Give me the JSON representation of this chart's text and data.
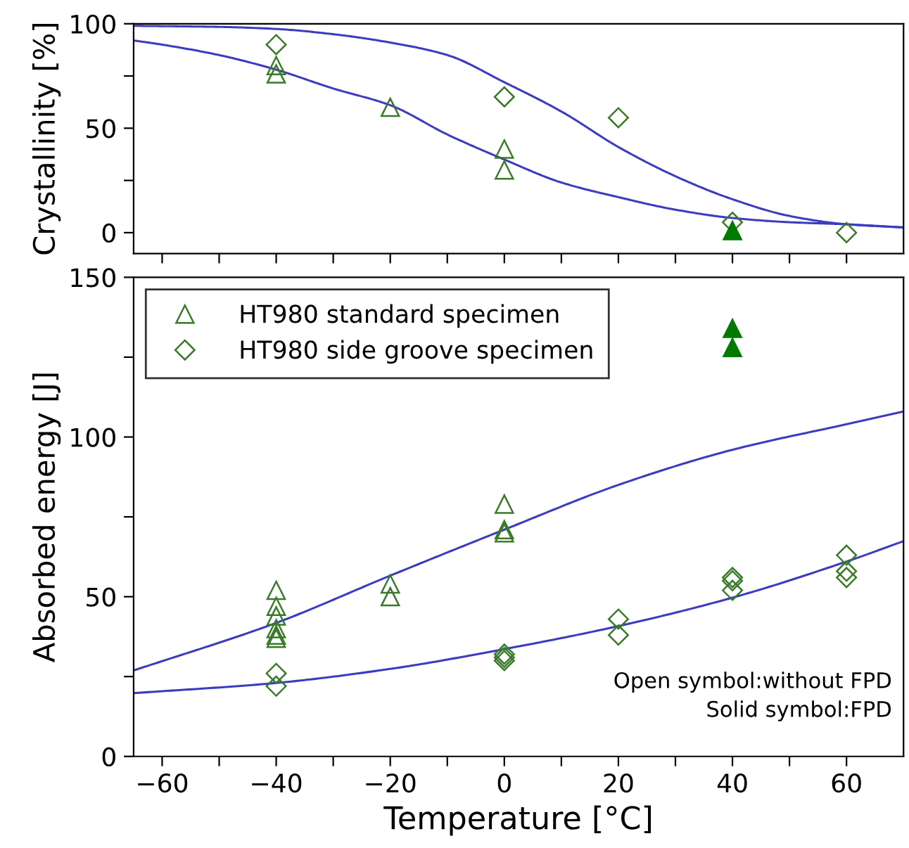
{
  "chart_data": [
    {
      "type": "scatter",
      "ylabel": "Crystallinity [%]",
      "xlim": [
        -65,
        70
      ],
      "ylim": [
        -10,
        100
      ],
      "xticks": [
        {
          "value": -60,
          "label": null
        },
        {
          "value": -50,
          "label": null
        },
        {
          "value": -40,
          "label": null
        },
        {
          "value": -30,
          "label": null
        },
        {
          "value": -20,
          "label": null
        },
        {
          "value": -10,
          "label": null
        },
        {
          "value": 0,
          "label": null
        },
        {
          "value": 10,
          "label": null
        },
        {
          "value": 20,
          "label": null
        },
        {
          "value": 30,
          "label": null
        },
        {
          "value": 40,
          "label": null
        },
        {
          "value": 50,
          "label": null
        },
        {
          "value": 60,
          "label": null
        }
      ],
      "yticks": [
        0,
        {
          "value": 25,
          "label": null
        },
        50,
        {
          "value": 75,
          "label": null
        },
        100
      ],
      "tick_labels": "y",
      "legend": false,
      "grid": false,
      "series": [
        {
          "type": "line",
          "color": "#3c3cc0",
          "marker": "none",
          "x": [
            -65,
            -60,
            -50,
            -40,
            -30,
            -20,
            -10,
            0,
            10,
            20,
            30,
            40,
            50,
            60,
            70
          ],
          "values": [
            92,
            90,
            85,
            78,
            69,
            61,
            47,
            35,
            24,
            17,
            11,
            7,
            5,
            4,
            2.5
          ]
        },
        {
          "type": "line",
          "color": "#3c3cc0",
          "marker": "none",
          "x": [
            -65,
            -50,
            -40,
            -30,
            -20,
            -10,
            0,
            10,
            20,
            30,
            40,
            50,
            60,
            70
          ],
          "values": [
            99,
            98.5,
            97.5,
            95,
            91,
            85,
            72,
            58,
            41,
            27,
            16,
            8,
            4,
            2.5
          ]
        },
        {
          "color": "#3a7a2a",
          "marker": "triangle",
          "x": [
            -40,
            -40,
            -20,
            0,
            0
          ],
          "values": [
            80,
            76,
            60,
            40,
            30
          ]
        },
        {
          "color": "#3a7a2a",
          "marker": "diamond",
          "x": [
            -40,
            0,
            20,
            40,
            60
          ],
          "values": [
            90,
            65,
            55,
            5,
            0
          ]
        },
        {
          "color": "#007a00",
          "marker": "triangle",
          "x": [
            40
          ],
          "values": [
            1
          ]
        }
      ]
    },
    {
      "type": "scatter",
      "xlabel": "Temperature [°C]",
      "ylabel": "Absorbed energy [J]",
      "xlim": [
        -65,
        70
      ],
      "ylim": [
        0,
        150
      ],
      "xticks": [
        -60,
        {
          "value": -50,
          "label": null
        },
        -40,
        {
          "value": -30,
          "label": null
        },
        -20,
        {
          "value": -10,
          "label": null
        },
        0,
        {
          "value": 10,
          "label": null
        },
        20,
        {
          "value": 30,
          "label": null
        },
        40,
        {
          "value": 50,
          "label": null
        },
        60
      ],
      "yticks": [
        0,
        {
          "value": 25,
          "label": null
        },
        50,
        {
          "value": 75,
          "label": null
        },
        100,
        {
          "value": 125,
          "label": null
        },
        150
      ],
      "legend": "top left",
      "grid": false,
      "annotations": [
        "Open symbol:without FPD",
        "Solid symbol:FPD"
      ],
      "series": [
        {
          "type": "line",
          "color": "#3c3cc0",
          "marker": "none",
          "x": [
            -65,
            -40,
            -20,
            0,
            20,
            40,
            60,
            70
          ],
          "values": [
            26.9,
            41.8,
            56.6,
            71,
            85,
            96,
            104,
            108
          ]
        },
        {
          "type": "line",
          "color": "#3c3cc0",
          "marker": "none",
          "x": [
            -65,
            -40,
            -20,
            0,
            20,
            40,
            60,
            70
          ],
          "values": [
            19.8,
            23,
            27.4,
            33.6,
            40.8,
            49.7,
            61,
            67.4
          ]
        },
        {
          "name": "HT980 standard specimen",
          "color": "#3a7a2a",
          "marker": "triangle",
          "x": [
            -40,
            -40,
            -40,
            -40,
            -40,
            -40,
            -20,
            -20,
            0,
            0,
            0
          ],
          "values": [
            52,
            47,
            44,
            40,
            37,
            38,
            54,
            50,
            79,
            71,
            70
          ]
        },
        {
          "name": "HT980 side groove specimen",
          "color": "#3a7a2a",
          "marker": "diamond",
          "x": [
            -40,
            -40,
            0,
            0,
            0,
            20,
            20,
            40,
            40,
            40,
            60,
            60,
            60
          ],
          "values": [
            26,
            22,
            32,
            31,
            30,
            43,
            38,
            56,
            55,
            52,
            63,
            58,
            56
          ]
        },
        {
          "color": "#007a00",
          "marker": "triangle",
          "x": [
            40,
            40
          ],
          "values": [
            134,
            128
          ]
        }
      ]
    }
  ]
}
